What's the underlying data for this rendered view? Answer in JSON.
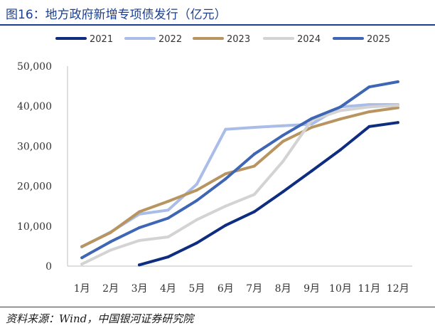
{
  "header": {
    "title": "图16：地方政府新增专项债发行（亿元）"
  },
  "footer": {
    "source": "资料来源：Wind，中国银河证券研究院"
  },
  "chart_data": {
    "type": "line",
    "title": "图16：地方政府新增专项债发行（亿元）",
    "xlabel": "",
    "ylabel": "",
    "ylim": [
      0,
      50000
    ],
    "yticks": [
      0,
      10000,
      20000,
      30000,
      40000,
      50000
    ],
    "ytick_labels": [
      "0",
      "10,000",
      "20,000",
      "30,000",
      "40,000",
      "50,000"
    ],
    "categories": [
      "1月",
      "2月",
      "3月",
      "4月",
      "5月",
      "6月",
      "7月",
      "8月",
      "9月",
      "10月",
      "11月",
      "12月"
    ],
    "legend_position": "top",
    "grid": false,
    "series": [
      {
        "name": "2021",
        "color": "#0f2d80",
        "values": [
          null,
          null,
          300,
          2300,
          5800,
          10200,
          13600,
          18600,
          23800,
          29100,
          34900,
          35900
        ]
      },
      {
        "name": "2022",
        "color": "#a9bde8",
        "values": [
          4800,
          8500,
          13000,
          14000,
          20500,
          34200,
          34700,
          35100,
          35500,
          39800,
          40400,
          40400
        ]
      },
      {
        "name": "2023",
        "color": "#b89560",
        "values": [
          4900,
          8400,
          13600,
          16200,
          19000,
          23100,
          25000,
          31200,
          34700,
          36800,
          38600,
          39600
        ]
      },
      {
        "name": "2024",
        "color": "#d3d3d3",
        "values": [
          500,
          4000,
          6400,
          7300,
          11600,
          15000,
          17900,
          26200,
          36500,
          38900,
          39800,
          40200
        ]
      },
      {
        "name": "2025",
        "color": "#3e66b5",
        "values": [
          2100,
          6100,
          9600,
          12000,
          16400,
          21800,
          28000,
          32700,
          36900,
          39800,
          44800,
          46100
        ]
      }
    ]
  }
}
